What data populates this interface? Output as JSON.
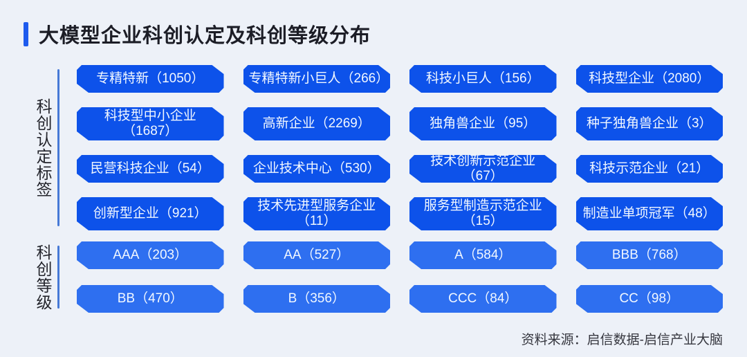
{
  "title": {
    "text": "大模型企业科创认定及科创等级分布"
  },
  "sections": [
    {
      "label": "科创认定标签",
      "tags": [
        {
          "label": "专精特新（1050）"
        },
        {
          "label": "专精特新小巨人（266）"
        },
        {
          "label": "科技小巨人（156）"
        },
        {
          "label": "科技型企业（2080）"
        },
        {
          "label": "科技型中小企业\n（1687）"
        },
        {
          "label": "高新企业（2269）"
        },
        {
          "label": "独角兽企业（95）"
        },
        {
          "label": "种子独角兽企业（3）"
        },
        {
          "label": "民营科技企业（54）"
        },
        {
          "label": "企业技术中心（530）"
        },
        {
          "label": "技术创新示范企业（67）"
        },
        {
          "label": "科技示范企业（21）"
        },
        {
          "label": "创新型企业（921）"
        },
        {
          "label": "技术先进型服务企业\n（11）"
        },
        {
          "label": "服务型制造示范企业\n（15）"
        },
        {
          "label": "制造业单项冠军（48）"
        }
      ]
    },
    {
      "label": "科创等级",
      "tags": [
        {
          "label": "AAA（203）"
        },
        {
          "label": "AA（527）"
        },
        {
          "label": "A（584）"
        },
        {
          "label": "BBB（768）"
        },
        {
          "label": "BB（470）"
        },
        {
          "label": "B（356）"
        },
        {
          "label": "CCC（84）"
        },
        {
          "label": "CC（98）"
        }
      ]
    }
  ],
  "footer": {
    "source": "资料来源：启信数据-启信产业大脑"
  },
  "colors": {
    "background": "#edf1f8",
    "accent_bar": "#1e5bee",
    "title_text": "#1c1d26",
    "cert_tag_bg": "#0d52ea",
    "grade_tag_bg": "#2e6ff0",
    "tag_text": "#f2f8ff",
    "side_line": "#4679d6",
    "side_text": "#23242b",
    "footer_text": "#36373f"
  },
  "chart_data": [
    {
      "type": "table",
      "title": "科创认定标签",
      "categories": [
        "专精特新",
        "专精特新小巨人",
        "科技小巨人",
        "科技型企业",
        "科技型中小企业",
        "高新企业",
        "独角兽企业",
        "种子独角兽企业",
        "民营科技企业",
        "企业技术中心",
        "技术创新示范企业",
        "科技示范企业",
        "创新型企业",
        "技术先进型服务企业",
        "服务型制造示范企业",
        "制造业单项冠军"
      ],
      "values": [
        1050,
        266,
        156,
        2080,
        1687,
        2269,
        95,
        3,
        54,
        530,
        67,
        21,
        921,
        11,
        15,
        48
      ],
      "layout": "4-column grid of tag badges",
      "legend": "off",
      "grid": "off"
    },
    {
      "type": "table",
      "title": "科创等级",
      "categories": [
        "AAA",
        "AA",
        "A",
        "BBB",
        "BB",
        "B",
        "CCC",
        "CC"
      ],
      "values": [
        203,
        527,
        584,
        768,
        470,
        356,
        84,
        98
      ],
      "layout": "4-column grid of tag badges",
      "legend": "off",
      "grid": "off"
    }
  ]
}
